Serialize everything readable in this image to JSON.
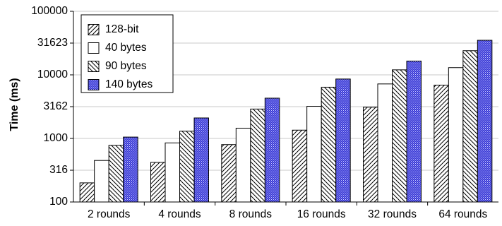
{
  "chart_data": {
    "type": "bar",
    "title": "",
    "xlabel": "",
    "ylabel": "Time (ms)",
    "yscale": "log",
    "ylim": [
      100,
      100000
    ],
    "yticks": [
      {
        "value": 100,
        "label": "100"
      },
      {
        "value": 316,
        "label": "316"
      },
      {
        "value": 1000,
        "label": "1000"
      },
      {
        "value": 3162,
        "label": "3162"
      },
      {
        "value": 10000,
        "label": "10000"
      },
      {
        "value": 31623,
        "label": "31623"
      },
      {
        "value": 100000,
        "label": "100000"
      }
    ],
    "grid": "horizontal",
    "legend_position": "top-left",
    "categories": [
      "2 rounds",
      "4 rounds",
      "8 rounds",
      "16 rounds",
      "32 rounds",
      "64 rounds"
    ],
    "series": [
      {
        "name": "128-bit",
        "pattern": "diagonal-up-hatch",
        "color": "#000000",
        "values": [
          200,
          420,
          800,
          1350,
          3100,
          6900
        ]
      },
      {
        "name": "40 bytes",
        "pattern": "solid-white",
        "color": "#ffffff",
        "values": [
          450,
          850,
          1450,
          3200,
          7200,
          13000
        ]
      },
      {
        "name": "90 bytes",
        "pattern": "diagonal-down-hatch",
        "color": "#000000",
        "values": [
          780,
          1300,
          2900,
          6400,
          12000,
          24000
        ]
      },
      {
        "name": "140 bytes",
        "pattern": "blue-dots",
        "color": "#3a3ad6",
        "values": [
          1050,
          2100,
          4300,
          8600,
          16500,
          35000
        ]
      }
    ]
  }
}
